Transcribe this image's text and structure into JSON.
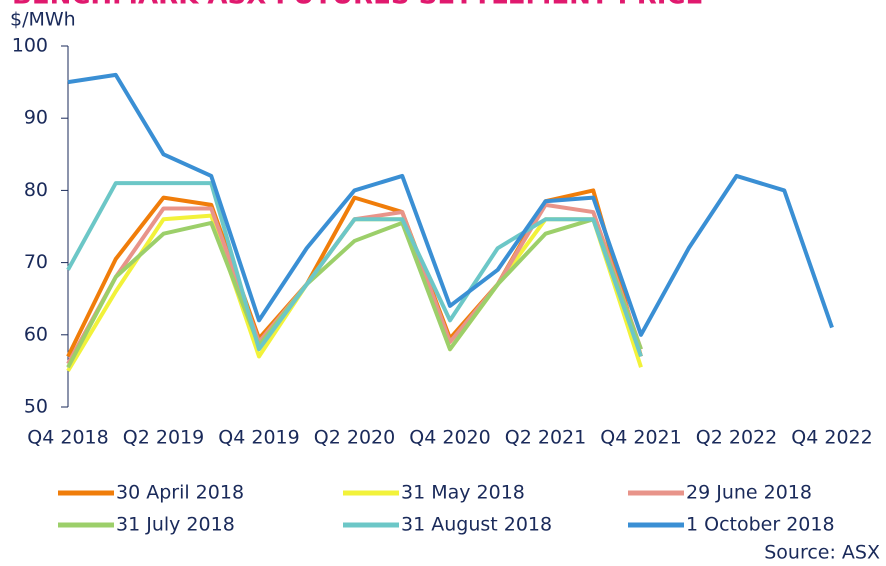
{
  "chart_data": {
    "type": "line",
    "title": "BENCHMARK ASX FUTURES SETTLEMENT PRICE",
    "y_label": "$/MWh",
    "source": "Source: ASX",
    "categories": [
      "Q4 2018",
      null,
      "Q2 2019",
      null,
      "Q4 2019",
      null,
      "Q2 2020",
      null,
      "Q4 2020",
      null,
      "Q2 2021",
      null,
      "Q4 2021",
      null,
      "Q2 2022",
      null,
      "Q4 2022"
    ],
    "ylim": [
      50,
      100
    ],
    "yticks": [
      50,
      60,
      70,
      80,
      90,
      100
    ],
    "series": [
      {
        "name": "30 April 2018",
        "color": "#f07d0a",
        "values": [
          57,
          70.5,
          79,
          78,
          59.5,
          67,
          79,
          77,
          59.5,
          67,
          78.5,
          80,
          57,
          null,
          null,
          null,
          null
        ]
      },
      {
        "name": "31 May 2018",
        "color": "#f2f23a",
        "values": [
          55,
          66,
          76,
          76.5,
          57,
          67,
          76,
          76,
          58,
          67,
          76,
          76,
          55.5,
          null,
          null,
          null,
          null
        ]
      },
      {
        "name": "29 June 2018",
        "color": "#e8948a",
        "values": [
          56,
          68,
          77.5,
          77.5,
          59,
          67,
          76,
          77,
          59,
          67,
          78,
          77,
          58,
          null,
          null,
          null,
          null
        ]
      },
      {
        "name": "31 July 2018",
        "color": "#9ccf6a",
        "values": [
          55.5,
          68,
          74,
          75.5,
          58.5,
          67,
          73,
          75.5,
          58,
          67,
          74,
          76,
          58,
          null,
          null,
          null,
          null
        ]
      },
      {
        "name": "31 August 2018",
        "color": "#6cc7c7",
        "values": [
          69,
          81,
          81,
          81,
          58,
          67,
          76,
          76,
          62,
          72,
          76,
          76,
          57,
          null,
          null,
          null,
          null
        ]
      },
      {
        "name": "1 October 2018",
        "color": "#3a8fd4",
        "values": [
          95,
          96,
          85,
          82,
          62,
          72,
          80,
          82,
          64,
          69,
          78.5,
          79,
          60,
          72,
          82,
          80,
          61
        ]
      }
    ]
  }
}
